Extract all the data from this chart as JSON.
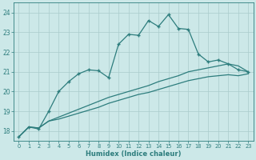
{
  "xlabel": "Humidex (Indice chaleur)",
  "bg_color": "#cce8e8",
  "line_color": "#2d7d7d",
  "grid_color": "#b0d8d8",
  "xlim": [
    -0.5,
    23.5
  ],
  "ylim": [
    17.5,
    24.5
  ],
  "yticks": [
    18,
    19,
    20,
    21,
    22,
    23,
    24
  ],
  "xticks": [
    0,
    1,
    2,
    3,
    4,
    5,
    6,
    7,
    8,
    9,
    10,
    11,
    12,
    13,
    14,
    15,
    16,
    17,
    18,
    19,
    20,
    21,
    22,
    23
  ],
  "line1_x": [
    0,
    1,
    2,
    3,
    4,
    5,
    6,
    7,
    8,
    9,
    10,
    11,
    12,
    13,
    14,
    15,
    16,
    17,
    18,
    19,
    20,
    21,
    22,
    23
  ],
  "line1_y": [
    17.7,
    18.2,
    18.1,
    19.0,
    20.0,
    20.5,
    20.9,
    21.1,
    21.05,
    20.7,
    22.4,
    22.9,
    22.85,
    23.6,
    23.3,
    23.9,
    23.2,
    23.15,
    21.9,
    21.5,
    21.6,
    21.4,
    21.1,
    21.0
  ],
  "line2_x": [
    0,
    1,
    2,
    3,
    4,
    5,
    6,
    7,
    8,
    9,
    10,
    11,
    12,
    13,
    14,
    15,
    16,
    17,
    18,
    19,
    20,
    21,
    22,
    23
  ],
  "line2_y": [
    17.7,
    18.2,
    18.15,
    18.5,
    18.7,
    18.9,
    19.1,
    19.3,
    19.5,
    19.7,
    19.85,
    20.0,
    20.15,
    20.3,
    20.5,
    20.65,
    20.8,
    21.0,
    21.1,
    21.2,
    21.3,
    21.4,
    21.3,
    21.0
  ],
  "line3_x": [
    0,
    1,
    2,
    3,
    4,
    5,
    6,
    7,
    8,
    9,
    10,
    11,
    12,
    13,
    14,
    15,
    16,
    17,
    18,
    19,
    20,
    21,
    22,
    23
  ],
  "line3_y": [
    17.7,
    18.2,
    18.15,
    18.5,
    18.6,
    18.75,
    18.9,
    19.05,
    19.2,
    19.4,
    19.55,
    19.7,
    19.85,
    19.95,
    20.1,
    20.25,
    20.4,
    20.55,
    20.65,
    20.75,
    20.8,
    20.85,
    20.8,
    20.9
  ]
}
